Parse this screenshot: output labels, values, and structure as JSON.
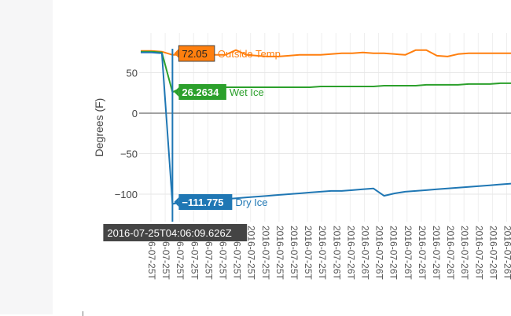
{
  "chart_data": {
    "type": "line",
    "ylabel": "Degrees (F)",
    "yticks": [
      50,
      0,
      -50,
      -100
    ],
    "ylim": [
      -125,
      82
    ],
    "x_tick_label": "2016-07-25T04:06:09.626Z",
    "x_ticks": [
      "2016-07-25T",
      "2016-07-25T",
      "2016-07-25T",
      "2016-07-25T",
      "2016-07-25T",
      "2016-07-25T",
      "2016-07-25T",
      "2016-07-25T",
      "2016-07-25T",
      "2016-07-25T",
      "2016-07-25T",
      "2016-07-25T",
      "2016-07-25T",
      "2016-07-26T",
      "2016-07-26T",
      "2016-07-26T",
      "2016-07-26T",
      "2016-07-26T",
      "2016-07-26T",
      "2016-07-26T",
      "2016-07-26T",
      "2016-07-26T",
      "2016-07-26T",
      "2016-07-26T",
      "2016-07-26T",
      "2016-07-26T"
    ],
    "series": [
      {
        "name": "Outside Temp",
        "color": "#ff7f0e",
        "hover_value": "72.05",
        "values": [
          77,
          77,
          76,
          72,
          72,
          72,
          72,
          72,
          72,
          78,
          72,
          71,
          70,
          70,
          71,
          72,
          72,
          72,
          73,
          74,
          74,
          75,
          74,
          74,
          73,
          72,
          78,
          78,
          71,
          70,
          73,
          74,
          74,
          74,
          74,
          74
        ]
      },
      {
        "name": "Wet Ice",
        "color": "#2ca02c",
        "hover_value": "26.2634",
        "values": [
          76,
          76,
          75,
          26,
          32,
          32,
          32,
          32,
          32,
          32,
          32,
          32,
          32,
          32,
          32,
          32,
          32,
          33,
          33,
          33,
          33,
          33,
          33,
          34,
          34,
          34,
          34,
          35,
          35,
          35,
          35,
          36,
          36,
          36,
          37,
          37
        ]
      },
      {
        "name": "Dry Ice",
        "color": "#1f77b4",
        "hover_value": "−111.775",
        "values": [
          75,
          75,
          74,
          -112,
          -110,
          -109,
          -108,
          -107,
          -106,
          -105,
          -104,
          -103,
          -102,
          -101,
          -100,
          -99,
          -98,
          -97,
          -96,
          -96,
          -95,
          -94,
          -93,
          -102,
          -99,
          -97,
          -96,
          -95,
          -94,
          -93,
          -92,
          -91,
          -90,
          -89,
          -88,
          -87
        ]
      }
    ]
  }
}
